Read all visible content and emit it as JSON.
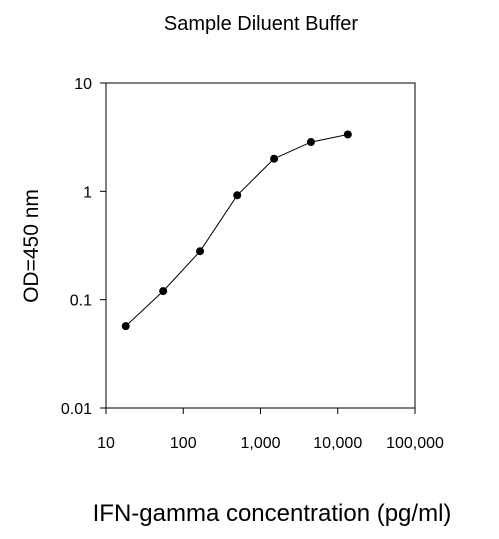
{
  "chart_data": {
    "type": "line",
    "title": "Sample Diluent Buffer",
    "xlabel": "IFN-gamma concentration (pg/ml)",
    "ylabel": "OD=450 nm",
    "x_scale": "log",
    "y_scale": "log",
    "xlim": [
      10,
      100000
    ],
    "ylim": [
      0.01,
      10
    ],
    "x_ticks": [
      {
        "value": 10,
        "label": "10"
      },
      {
        "value": 100,
        "label": "100"
      },
      {
        "value": 1000,
        "label": "1,000"
      },
      {
        "value": 10000,
        "label": "10,000"
      },
      {
        "value": 100000,
        "label": "100,000"
      }
    ],
    "y_ticks": [
      {
        "value": 0.01,
        "label": "0.01"
      },
      {
        "value": 0.1,
        "label": "0.1"
      },
      {
        "value": 1,
        "label": "1"
      },
      {
        "value": 10,
        "label": "10"
      }
    ],
    "grid": false,
    "legend": "none",
    "series": [
      {
        "x": [
          18,
          55,
          165,
          500,
          1500,
          4500,
          13500
        ],
        "y": [
          0.057,
          0.12,
          0.28,
          0.92,
          2.0,
          2.85,
          3.35
        ]
      }
    ]
  }
}
